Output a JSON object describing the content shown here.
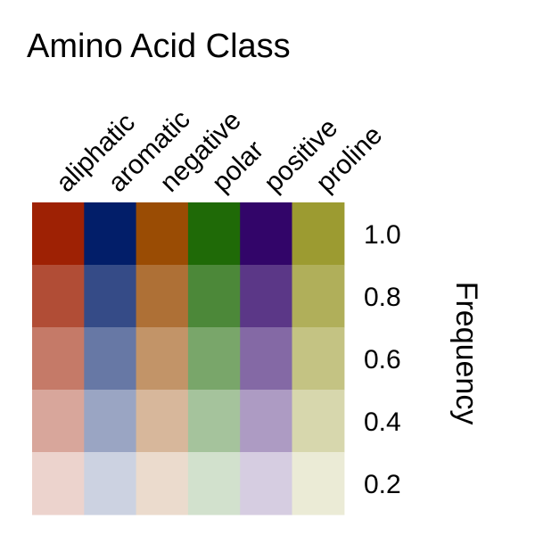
{
  "chart_data": {
    "type": "heatmap",
    "title": "Amino Acid Class",
    "xlabel": "",
    "ylabel": "Frequency",
    "categories": [
      "aliphatic",
      "aromatic",
      "negative",
      "polar",
      "positive",
      "proline"
    ],
    "frequency_levels": [
      1.0,
      0.8,
      0.6,
      0.4,
      0.2
    ],
    "tick_labels": [
      "1.0",
      "0.8",
      "0.6",
      "0.4",
      "0.2"
    ],
    "base_colors": {
      "aliphatic": "#9e2104",
      "aromatic": "#021e69",
      "negative": "#9a4c04",
      "polar": "#1f6a07",
      "positive": "#320569",
      "proline": "#9c9b31"
    },
    "grid": false,
    "legend": "none"
  }
}
